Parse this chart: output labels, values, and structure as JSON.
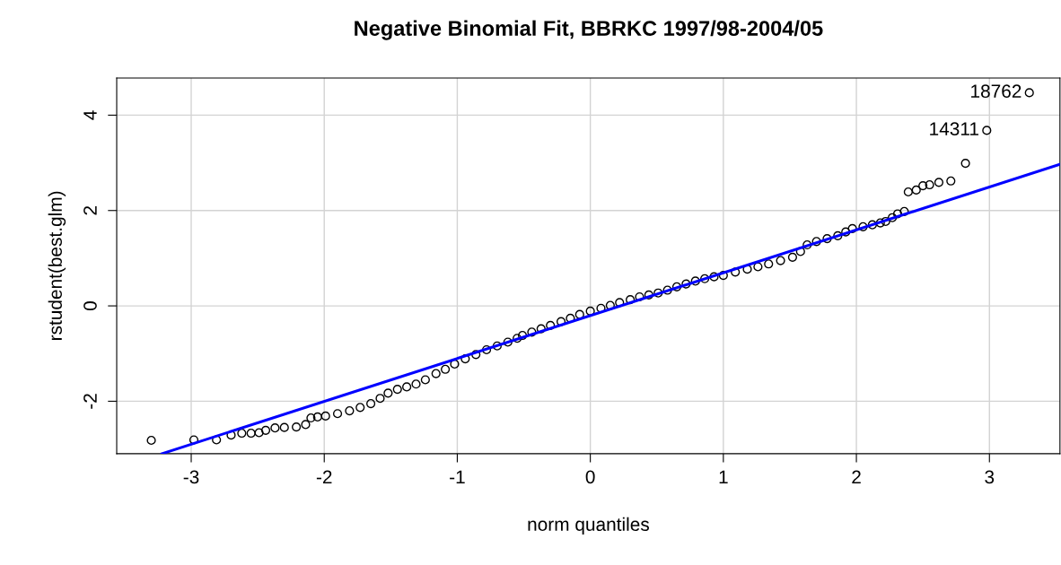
{
  "chart_data": {
    "type": "scatter",
    "title": "Negative Binomial Fit, BBRKC 1997/98-2004/05",
    "xlabel": "norm quantiles",
    "ylabel": "rstudent(best.glm)",
    "series": [
      {
        "color": "#000000",
        "marker": "circle",
        "x": [
          -3.3,
          -2.98,
          -2.81,
          -2.7,
          -2.62,
          -2.55,
          -2.49,
          -2.44,
          -2.37,
          -2.3,
          -2.21,
          -2.14,
          -2.1,
          -2.05,
          -1.99,
          -1.9,
          -1.81,
          -1.73,
          -1.65,
          -1.58,
          -1.52,
          -1.45,
          -1.38,
          -1.31,
          -1.24,
          -1.16,
          -1.09,
          -1.02,
          -0.94,
          -0.86,
          -0.78,
          -0.7,
          -0.62,
          -0.55,
          -0.51,
          -0.44,
          -0.37,
          -0.3,
          -0.22,
          -0.15,
          -0.08,
          0.0,
          0.08,
          0.15,
          0.22,
          0.3,
          0.37,
          0.44,
          0.51,
          0.58,
          0.65,
          0.72,
          0.79,
          0.86,
          0.93,
          1.0,
          1.09,
          1.18,
          1.26,
          1.34,
          1.43,
          1.52,
          1.58,
          1.63,
          1.7,
          1.78,
          1.86,
          1.92,
          1.97,
          2.05,
          2.12,
          2.18,
          2.22,
          2.27,
          2.31,
          2.36,
          2.39,
          2.45,
          2.5,
          2.55,
          2.62,
          2.71,
          2.82,
          2.98,
          3.3
        ],
        "values": [
          -2.82,
          -2.81,
          -2.81,
          -2.71,
          -2.67,
          -2.67,
          -2.66,
          -2.61,
          -2.56,
          -2.55,
          -2.54,
          -2.49,
          -2.35,
          -2.33,
          -2.31,
          -2.26,
          -2.2,
          -2.13,
          -2.05,
          -1.94,
          -1.83,
          -1.75,
          -1.7,
          -1.64,
          -1.55,
          -1.42,
          -1.33,
          -1.22,
          -1.11,
          -1.02,
          -0.92,
          -0.84,
          -0.76,
          -0.68,
          -0.62,
          -0.55,
          -0.48,
          -0.41,
          -0.33,
          -0.26,
          -0.18,
          -0.11,
          -0.05,
          0.01,
          0.07,
          0.13,
          0.19,
          0.23,
          0.27,
          0.33,
          0.4,
          0.46,
          0.52,
          0.57,
          0.61,
          0.64,
          0.71,
          0.77,
          0.82,
          0.88,
          0.95,
          1.02,
          1.14,
          1.28,
          1.35,
          1.41,
          1.47,
          1.55,
          1.62,
          1.66,
          1.7,
          1.74,
          1.77,
          1.85,
          1.93,
          1.98,
          2.39,
          2.43,
          2.52,
          2.54,
          2.59,
          2.62,
          2.99,
          3.68,
          4.47
        ]
      },
      {
        "type": "line",
        "color": "#0000ff",
        "line_style": "solid",
        "x": [
          -3.22,
          3.53
        ],
        "values": [
          -3.1,
          2.97
        ]
      }
    ],
    "annotations": [
      {
        "text": "14311",
        "x": 2.98,
        "y": 3.68
      },
      {
        "text": "18762",
        "x": 3.3,
        "y": 4.47
      }
    ],
    "xlim": [
      -3.56,
      3.53
    ],
    "ylim": [
      -3.1,
      4.78
    ],
    "xticks": [
      -3,
      -2,
      -1,
      0,
      1,
      2,
      3
    ],
    "yticks": [
      -2,
      0,
      2,
      4
    ],
    "grid": true
  }
}
